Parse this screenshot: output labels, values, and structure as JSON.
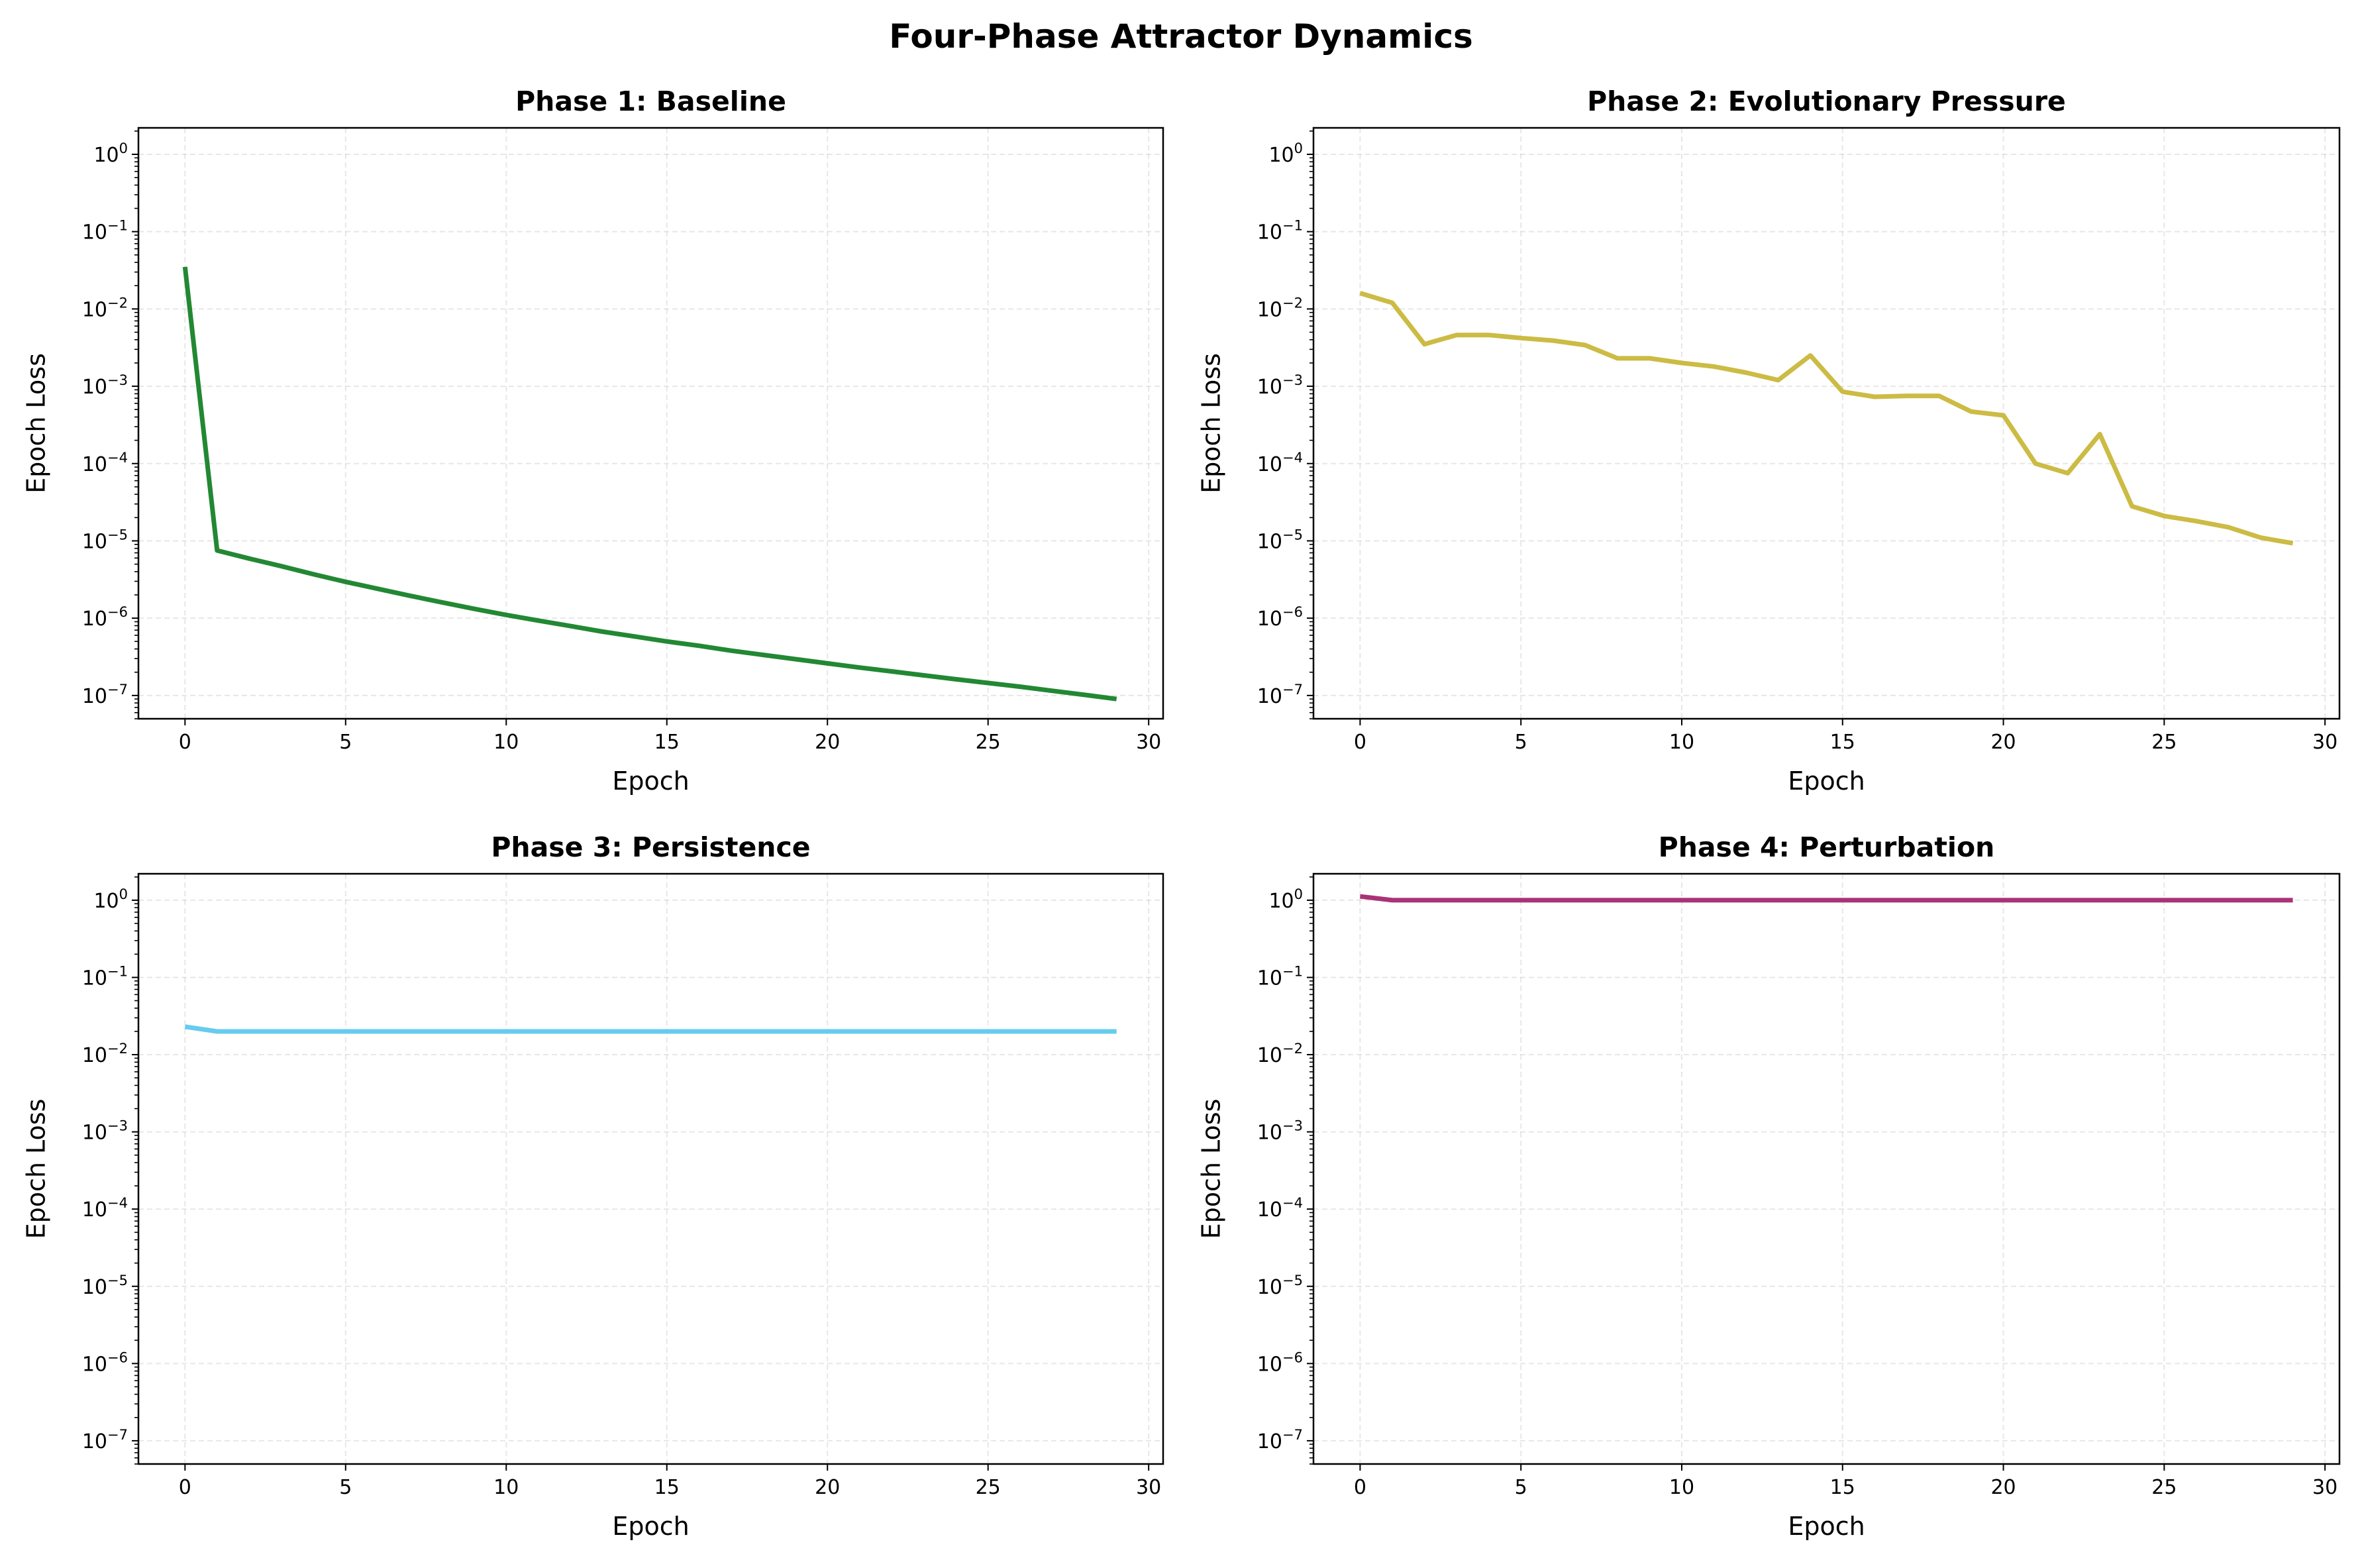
{
  "title": "Four-Phase Attractor Dynamics",
  "chart_data": [
    {
      "type": "line",
      "title": "Phase 1: Baseline",
      "xlabel": "Epoch",
      "ylabel": "Epoch Loss",
      "yscale": "log",
      "xlim": [
        -1.45,
        30.45
      ],
      "ylim": [
        5e-08,
        2.2
      ],
      "x_ticks": [
        0,
        5,
        10,
        15,
        20,
        25,
        30
      ],
      "y_ticks": [
        1,
        0.1,
        0.01,
        0.001,
        0.0001,
        1e-05,
        1e-06,
        1e-07
      ],
      "y_tick_labels": [
        "10^0",
        "10^-1",
        "10^-2",
        "10^-3",
        "10^-4",
        "10^-5",
        "10^-6",
        "10^-7"
      ],
      "grid": true,
      "color": "#228833",
      "x": [
        0,
        1,
        2,
        3,
        4,
        5,
        6,
        7,
        8,
        9,
        10,
        11,
        12,
        13,
        14,
        15,
        16,
        17,
        18,
        19,
        20,
        21,
        22,
        23,
        24,
        25,
        26,
        27,
        28,
        29
      ],
      "y": [
        0.035,
        7.5e-06,
        5.9e-06,
        4.7e-06,
        3.7e-06,
        2.95e-06,
        2.4e-06,
        1.95e-06,
        1.6e-06,
        1.32e-06,
        1.1e-06,
        9.3e-07,
        7.9e-07,
        6.7e-07,
        5.8e-07,
        5e-07,
        4.4e-07,
        3.8e-07,
        3.35e-07,
        2.95e-07,
        2.6e-07,
        2.3e-07,
        2.05e-07,
        1.82e-07,
        1.62e-07,
        1.45e-07,
        1.3e-07,
        1.15e-07,
        1.02e-07,
        9e-08
      ]
    },
    {
      "type": "line",
      "title": "Phase 2: Evolutionary Pressure",
      "xlabel": "Epoch",
      "ylabel": "Epoch Loss",
      "yscale": "log",
      "xlim": [
        -1.45,
        30.45
      ],
      "ylim": [
        5e-08,
        2.2
      ],
      "x_ticks": [
        0,
        5,
        10,
        15,
        20,
        25,
        30
      ],
      "y_ticks": [
        1,
        0.1,
        0.01,
        0.001,
        0.0001,
        1e-05,
        1e-06,
        1e-07
      ],
      "y_tick_labels": [
        "10^0",
        "10^-1",
        "10^-2",
        "10^-3",
        "10^-4",
        "10^-5",
        "10^-6",
        "10^-7"
      ],
      "grid": true,
      "color": "#ccbb44",
      "x": [
        0,
        1,
        2,
        3,
        4,
        5,
        6,
        7,
        8,
        9,
        10,
        11,
        12,
        13,
        14,
        15,
        16,
        17,
        18,
        19,
        20,
        21,
        22,
        23,
        24,
        25,
        26,
        27,
        28,
        29
      ],
      "y": [
        0.016,
        0.012,
        0.0035,
        0.0046,
        0.0046,
        0.0042,
        0.0039,
        0.0034,
        0.0023,
        0.0023,
        0.002,
        0.0018,
        0.0015,
        0.0012,
        0.0025,
        0.00085,
        0.00073,
        0.00075,
        0.00075,
        0.00047,
        0.00042,
        0.0001,
        7.5e-05,
        0.00024,
        2.8e-05,
        2.1e-05,
        1.8e-05,
        1.5e-05,
        1.1e-05,
        9.3e-06
      ]
    },
    {
      "type": "line",
      "title": "Phase 3: Persistence",
      "xlabel": "Epoch",
      "ylabel": "Epoch Loss",
      "yscale": "log",
      "xlim": [
        -1.45,
        30.45
      ],
      "ylim": [
        5e-08,
        2.2
      ],
      "x_ticks": [
        0,
        5,
        10,
        15,
        20,
        25,
        30
      ],
      "y_ticks": [
        1,
        0.1,
        0.01,
        0.001,
        0.0001,
        1e-05,
        1e-06,
        1e-07
      ],
      "y_tick_labels": [
        "10^0",
        "10^-1",
        "10^-2",
        "10^-3",
        "10^-4",
        "10^-5",
        "10^-6",
        "10^-7"
      ],
      "grid": true,
      "color": "#66ccee",
      "x": [
        0,
        1,
        2,
        3,
        4,
        5,
        6,
        7,
        8,
        9,
        10,
        11,
        12,
        13,
        14,
        15,
        16,
        17,
        18,
        19,
        20,
        21,
        22,
        23,
        24,
        25,
        26,
        27,
        28,
        29
      ],
      "y": [
        0.023,
        0.02,
        0.02,
        0.02,
        0.02,
        0.02,
        0.02,
        0.02,
        0.02,
        0.02,
        0.02,
        0.02,
        0.02,
        0.02,
        0.02,
        0.02,
        0.02,
        0.02,
        0.02,
        0.02,
        0.02,
        0.02,
        0.02,
        0.02,
        0.02,
        0.02,
        0.02,
        0.02,
        0.02,
        0.02
      ]
    },
    {
      "type": "line",
      "title": "Phase 4: Perturbation",
      "xlabel": "Epoch",
      "ylabel": "Epoch Loss",
      "yscale": "log",
      "xlim": [
        -1.45,
        30.45
      ],
      "ylim": [
        5e-08,
        2.2
      ],
      "x_ticks": [
        0,
        5,
        10,
        15,
        20,
        25,
        30
      ],
      "y_ticks": [
        1,
        0.1,
        0.01,
        0.001,
        0.0001,
        1e-05,
        1e-06,
        1e-07
      ],
      "y_tick_labels": [
        "10^0",
        "10^-1",
        "10^-2",
        "10^-3",
        "10^-4",
        "10^-5",
        "10^-6",
        "10^-7"
      ],
      "grid": true,
      "color": "#aa3377",
      "x": [
        0,
        1,
        2,
        3,
        4,
        5,
        6,
        7,
        8,
        9,
        10,
        11,
        12,
        13,
        14,
        15,
        16,
        17,
        18,
        19,
        20,
        21,
        22,
        23,
        24,
        25,
        26,
        27,
        28,
        29
      ],
      "y": [
        1.12,
        1.0,
        1.0,
        1.0,
        1.0,
        1.0,
        1.0,
        1.0,
        1.0,
        1.0,
        1.0,
        1.0,
        1.0,
        1.0,
        1.0,
        1.0,
        1.0,
        1.0,
        1.0,
        1.0,
        1.0,
        1.0,
        1.0,
        1.0,
        1.0,
        1.0,
        1.0,
        1.0,
        1.0,
        1.0
      ]
    }
  ]
}
